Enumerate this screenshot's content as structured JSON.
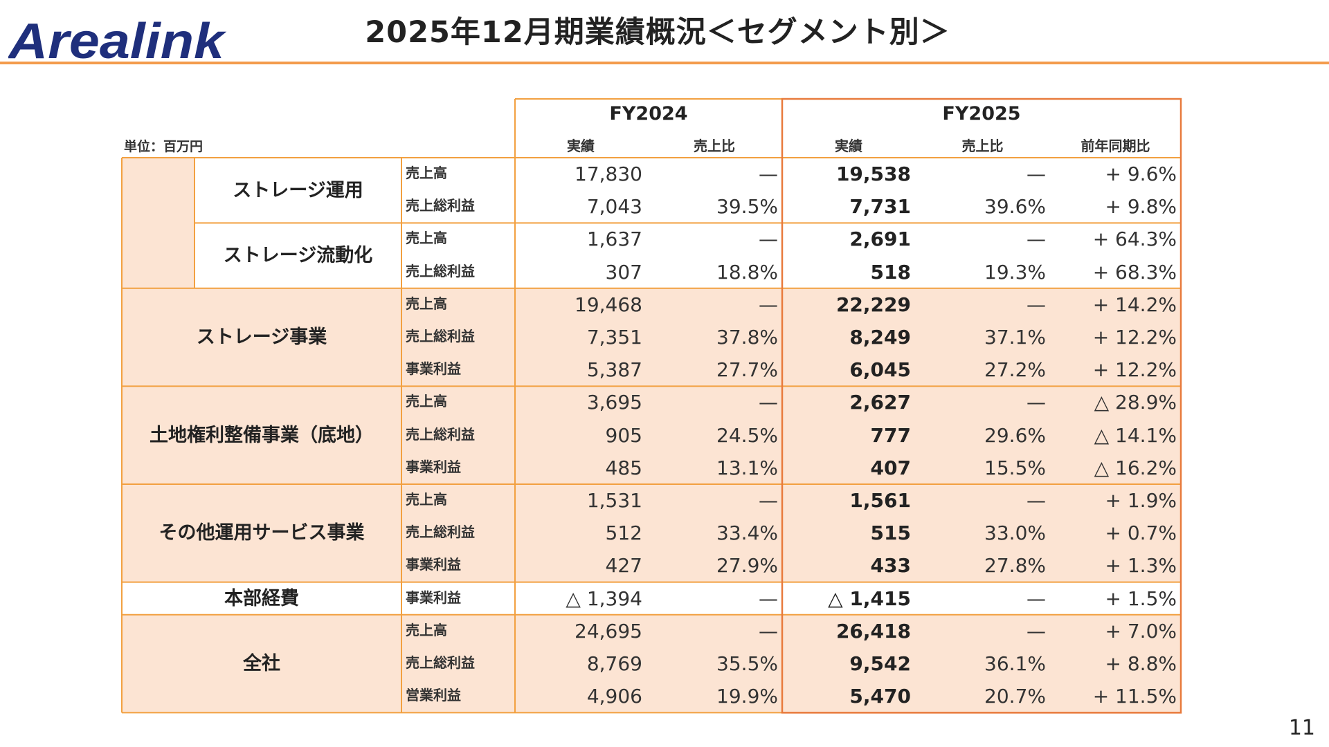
{
  "header": {
    "logo_text": "Arealink",
    "title": "2025年12月期業績概況＜セグメント別＞",
    "page_number": "11"
  },
  "table": {
    "unit_label": "単位：百万円",
    "fy2024": {
      "label": "FY2024",
      "col_actual": "実績",
      "col_ratio": "売上比"
    },
    "fy2025": {
      "label": "FY2025",
      "col_actual": "実績",
      "col_ratio": "売上比",
      "col_yoy": "前年同期比"
    },
    "groups": [
      {
        "segment": "ストレージ事業",
        "subsegments": [
          {
            "name": [
              "ストレージ",
              "運用"
            ],
            "rows": [
              {
                "metric": "売上高",
                "fy24": "17,830",
                "fy24_ratio": "—",
                "fy25": "19,538",
                "fy25_ratio": "—",
                "yoy": "+ 9.6%"
              },
              {
                "metric": "売上総利益",
                "fy24": "7,043",
                "fy24_ratio": "39.5%",
                "fy25": "7,731",
                "fy25_ratio": "39.6%",
                "yoy": "+ 9.8%"
              }
            ]
          },
          {
            "name": [
              "ストレージ",
              "流動化"
            ],
            "rows": [
              {
                "metric": "売上高",
                "fy24": "1,637",
                "fy24_ratio": "—",
                "fy25": "2,691",
                "fy25_ratio": "—",
                "yoy": "+ 64.3%"
              },
              {
                "metric": "売上総利益",
                "fy24": "307",
                "fy24_ratio": "18.8%",
                "fy25": "518",
                "fy25_ratio": "19.3%",
                "yoy": "+ 68.3%"
              }
            ]
          }
        ],
        "rows": [
          {
            "metric": "売上高",
            "fy24": "19,468",
            "fy24_ratio": "—",
            "fy25": "22,229",
            "fy25_ratio": "—",
            "yoy": "+ 14.2%"
          },
          {
            "metric": "売上総利益",
            "fy24": "7,351",
            "fy24_ratio": "37.8%",
            "fy25": "8,249",
            "fy25_ratio": "37.1%",
            "yoy": "+ 12.2%"
          },
          {
            "metric": "事業利益",
            "fy24": "5,387",
            "fy24_ratio": "27.7%",
            "fy25": "6,045",
            "fy25_ratio": "27.2%",
            "yoy": "+ 12.2%"
          }
        ]
      },
      {
        "segment_lines": [
          "土地権利整備事業",
          "（底地）"
        ],
        "rows": [
          {
            "metric": "売上高",
            "fy24": "3,695",
            "fy24_ratio": "—",
            "fy25": "2,627",
            "fy25_ratio": "—",
            "yoy": "△ 28.9%"
          },
          {
            "metric": "売上総利益",
            "fy24": "905",
            "fy24_ratio": "24.5%",
            "fy25": "777",
            "fy25_ratio": "29.6%",
            "yoy": "△ 14.1%"
          },
          {
            "metric": "事業利益",
            "fy24": "485",
            "fy24_ratio": "13.1%",
            "fy25": "407",
            "fy25_ratio": "15.5%",
            "yoy": "△ 16.2%"
          }
        ]
      },
      {
        "segment_lines": [
          "その他運用",
          "サービス事業"
        ],
        "rows": [
          {
            "metric": "売上高",
            "fy24": "1,531",
            "fy24_ratio": "—",
            "fy25": "1,561",
            "fy25_ratio": "—",
            "yoy": "+ 1.9%"
          },
          {
            "metric": "売上総利益",
            "fy24": "512",
            "fy24_ratio": "33.4%",
            "fy25": "515",
            "fy25_ratio": "33.0%",
            "yoy": "+ 0.7%"
          },
          {
            "metric": "事業利益",
            "fy24": "427",
            "fy24_ratio": "27.9%",
            "fy25": "433",
            "fy25_ratio": "27.8%",
            "yoy": "+ 1.3%"
          }
        ]
      },
      {
        "segment_lines": [
          "本部経費"
        ],
        "rows": [
          {
            "metric": "事業利益",
            "fy24": "△ 1,394",
            "fy24_ratio": "—",
            "fy25": "△ 1,415",
            "fy25_ratio": "—",
            "yoy": "+ 1.5%"
          }
        ]
      },
      {
        "segment_lines": [
          "全社"
        ],
        "rows": [
          {
            "metric": "売上高",
            "fy24": "24,695",
            "fy24_ratio": "—",
            "fy25": "26,418",
            "fy25_ratio": "—",
            "yoy": "+ 7.0%"
          },
          {
            "metric": "売上総利益",
            "fy24": "8,769",
            "fy24_ratio": "35.5%",
            "fy25": "9,542",
            "fy25_ratio": "36.1%",
            "yoy": "+ 8.8%"
          },
          {
            "metric": "営業利益",
            "fy24": "4,906",
            "fy24_ratio": "19.9%",
            "fy25": "5,470",
            "fy25_ratio": "20.7%",
            "yoy": "+ 11.5%"
          }
        ]
      }
    ]
  },
  "colors": {
    "accent": "#F39B4C",
    "border": "#F2A040",
    "fill": "#FCE4D3",
    "fy25_frame": "#E87A3C",
    "logo": "#1F2F7C"
  }
}
